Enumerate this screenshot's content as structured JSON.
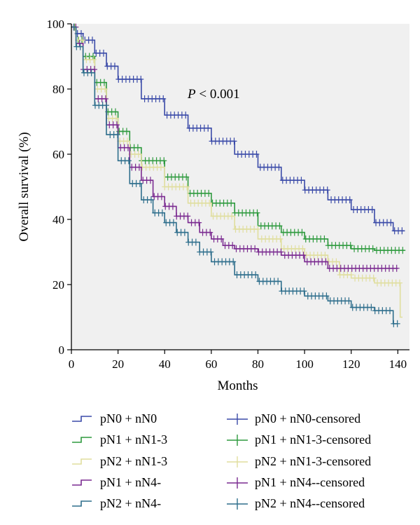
{
  "chart_data": {
    "type": "line",
    "title": "",
    "xlabel": "Months",
    "ylabel": "Overall survival (%)",
    "xlim": [
      0,
      145
    ],
    "ylim": [
      0,
      100
    ],
    "x_ticks": [
      "0",
      "20",
      "40",
      "60",
      "80",
      "100",
      "120",
      "140"
    ],
    "y_ticks": [
      "0",
      "20",
      "40",
      "60",
      "80",
      "100"
    ],
    "annotation": {
      "prefix": "P",
      "text": " < 0.001"
    },
    "plot_background": "#f0f0f0",
    "grid": false,
    "legend_position": "bottom",
    "series": [
      {
        "name": "pN0 + nN0",
        "color": "#3a4aa8",
        "x": [
          0,
          2,
          5,
          10,
          15,
          20,
          30,
          40,
          50,
          60,
          70,
          80,
          90,
          100,
          110,
          120,
          130,
          138,
          143
        ],
        "y": [
          99,
          97,
          95,
          91,
          87,
          83,
          77,
          72,
          68,
          64,
          60,
          56,
          52,
          49,
          46,
          43,
          39,
          36.5,
          36.5
        ]
      },
      {
        "name": "pN1 + nN1-3",
        "color": "#2e9a3e",
        "x": [
          0,
          2,
          5,
          10,
          15,
          20,
          25,
          30,
          40,
          50,
          60,
          70,
          80,
          90,
          100,
          110,
          120,
          130,
          143
        ],
        "y": [
          99,
          95,
          90,
          82,
          73,
          67,
          62,
          58,
          53,
          48,
          45,
          42,
          38,
          36,
          34,
          32,
          31,
          30.5,
          30.5
        ]
      },
      {
        "name": "pN2 + nN1-3",
        "color": "#e0de9e",
        "x": [
          0,
          2,
          5,
          10,
          15,
          20,
          25,
          30,
          40,
          50,
          60,
          70,
          80,
          90,
          100,
          110,
          115,
          120,
          130,
          140,
          141,
          142
        ],
        "y": [
          99,
          95,
          89,
          80,
          71,
          64,
          60,
          56,
          50,
          45,
          41,
          37,
          34,
          31,
          29,
          27,
          23,
          22,
          20.5,
          20.5,
          10,
          10
        ]
      },
      {
        "name": "pN1 + nN4-",
        "color": "#7a2a90",
        "x": [
          0,
          2,
          5,
          10,
          15,
          20,
          25,
          30,
          35,
          40,
          45,
          50,
          55,
          60,
          65,
          70,
          80,
          90,
          100,
          110,
          120,
          130,
          140
        ],
        "y": [
          99,
          94,
          86,
          77,
          69,
          62,
          56,
          52,
          47,
          44,
          41,
          39,
          36,
          34,
          32,
          31,
          30,
          29,
          27,
          25,
          25,
          25,
          25
        ]
      },
      {
        "name": "pN2 + nN4-",
        "color": "#2e6e8c",
        "x": [
          0,
          2,
          5,
          10,
          15,
          20,
          25,
          30,
          35,
          40,
          45,
          50,
          55,
          60,
          70,
          80,
          90,
          100,
          110,
          120,
          130,
          135,
          138,
          140
        ],
        "y": [
          99,
          93,
          85,
          75,
          66,
          58,
          51,
          46,
          42,
          39,
          36,
          33,
          30,
          27,
          23,
          21,
          18,
          16.5,
          15,
          13,
          12,
          12,
          8,
          8
        ]
      }
    ],
    "legend": {
      "line_entries": [
        "pN0 + nN0",
        "pN1 + nN1-3",
        "pN2 + nN1-3",
        "pN1 + nN4-",
        "pN2 + nN4-"
      ],
      "censored_entries": [
        "pN0 + nN0-censored",
        "pN1 + nN1-3-censored",
        "pN2 + nN1-3-censored",
        "pN1 + nN4--censored",
        "pN2 + nN4--censored"
      ]
    }
  }
}
